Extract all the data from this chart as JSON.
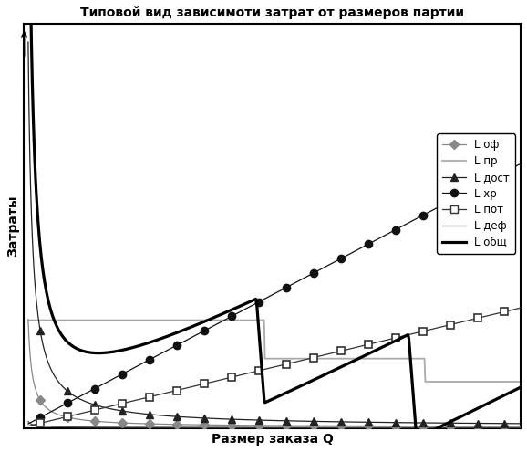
{
  "title": "Типовой вид зависимоти затрат от размеров партии",
  "xlabel": "Размер заказа Q",
  "ylabel": "Затраты",
  "legend_labels": [
    "L оф",
    "L пр",
    "L дост",
    "L хр",
    "L пот",
    "L деф",
    "L общ"
  ],
  "background_color": "#ffffff",
  "xlim": [
    0,
    62
  ],
  "ylim": [
    0,
    105
  ],
  "figsize": [
    5.78,
    4.95
  ],
  "dpi": 100
}
